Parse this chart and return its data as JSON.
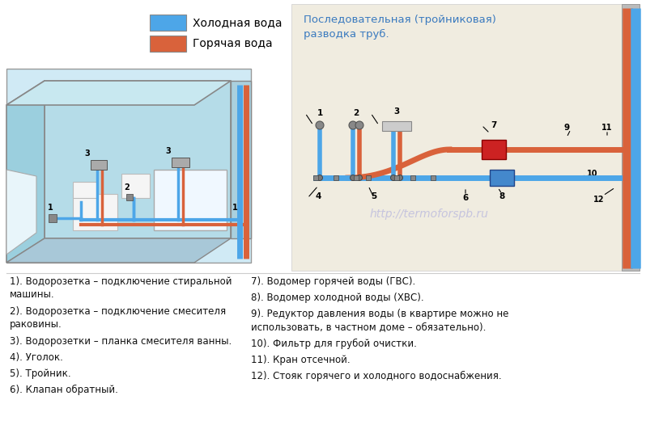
{
  "bg_color": "#ffffff",
  "legend_cold": "Холодная вода",
  "legend_hot": "Горячая вода",
  "cold_color": "#4da6e8",
  "hot_color": "#d9623b",
  "schema_title": "Последовательная (тройниковая)\nразводка труб.",
  "schema_title_color": "#3a7abf",
  "schema_bg": "#f5f0e0",
  "wall_color": "#cc3333",
  "watermark": "http://termoforspb.ru",
  "room_bg": "#b8dce8",
  "room_back": "#cce8f0",
  "items_left": [
    "1). Водорозетка – подключение стиральной\nмашины.",
    "2). Водорозетка – подключение смесителя\nраковины.",
    "3). Водорозетки – планка смесителя ванны.",
    "4). Уголок.",
    "5). Тройник.",
    "6). Клапан обратный."
  ],
  "items_right": [
    "7). Водомер горячей воды (ГВС).",
    "8). Водомер холодной воды (ХВС).",
    "9). Редуктор давления воды (в квартире можно не\nиспользовать, в частном доме – обязательно).",
    "10). Фильтр для грубой очистки.",
    "11). Кран отсечной.",
    "12). Стояк горячего и холодного водоснабжения."
  ]
}
